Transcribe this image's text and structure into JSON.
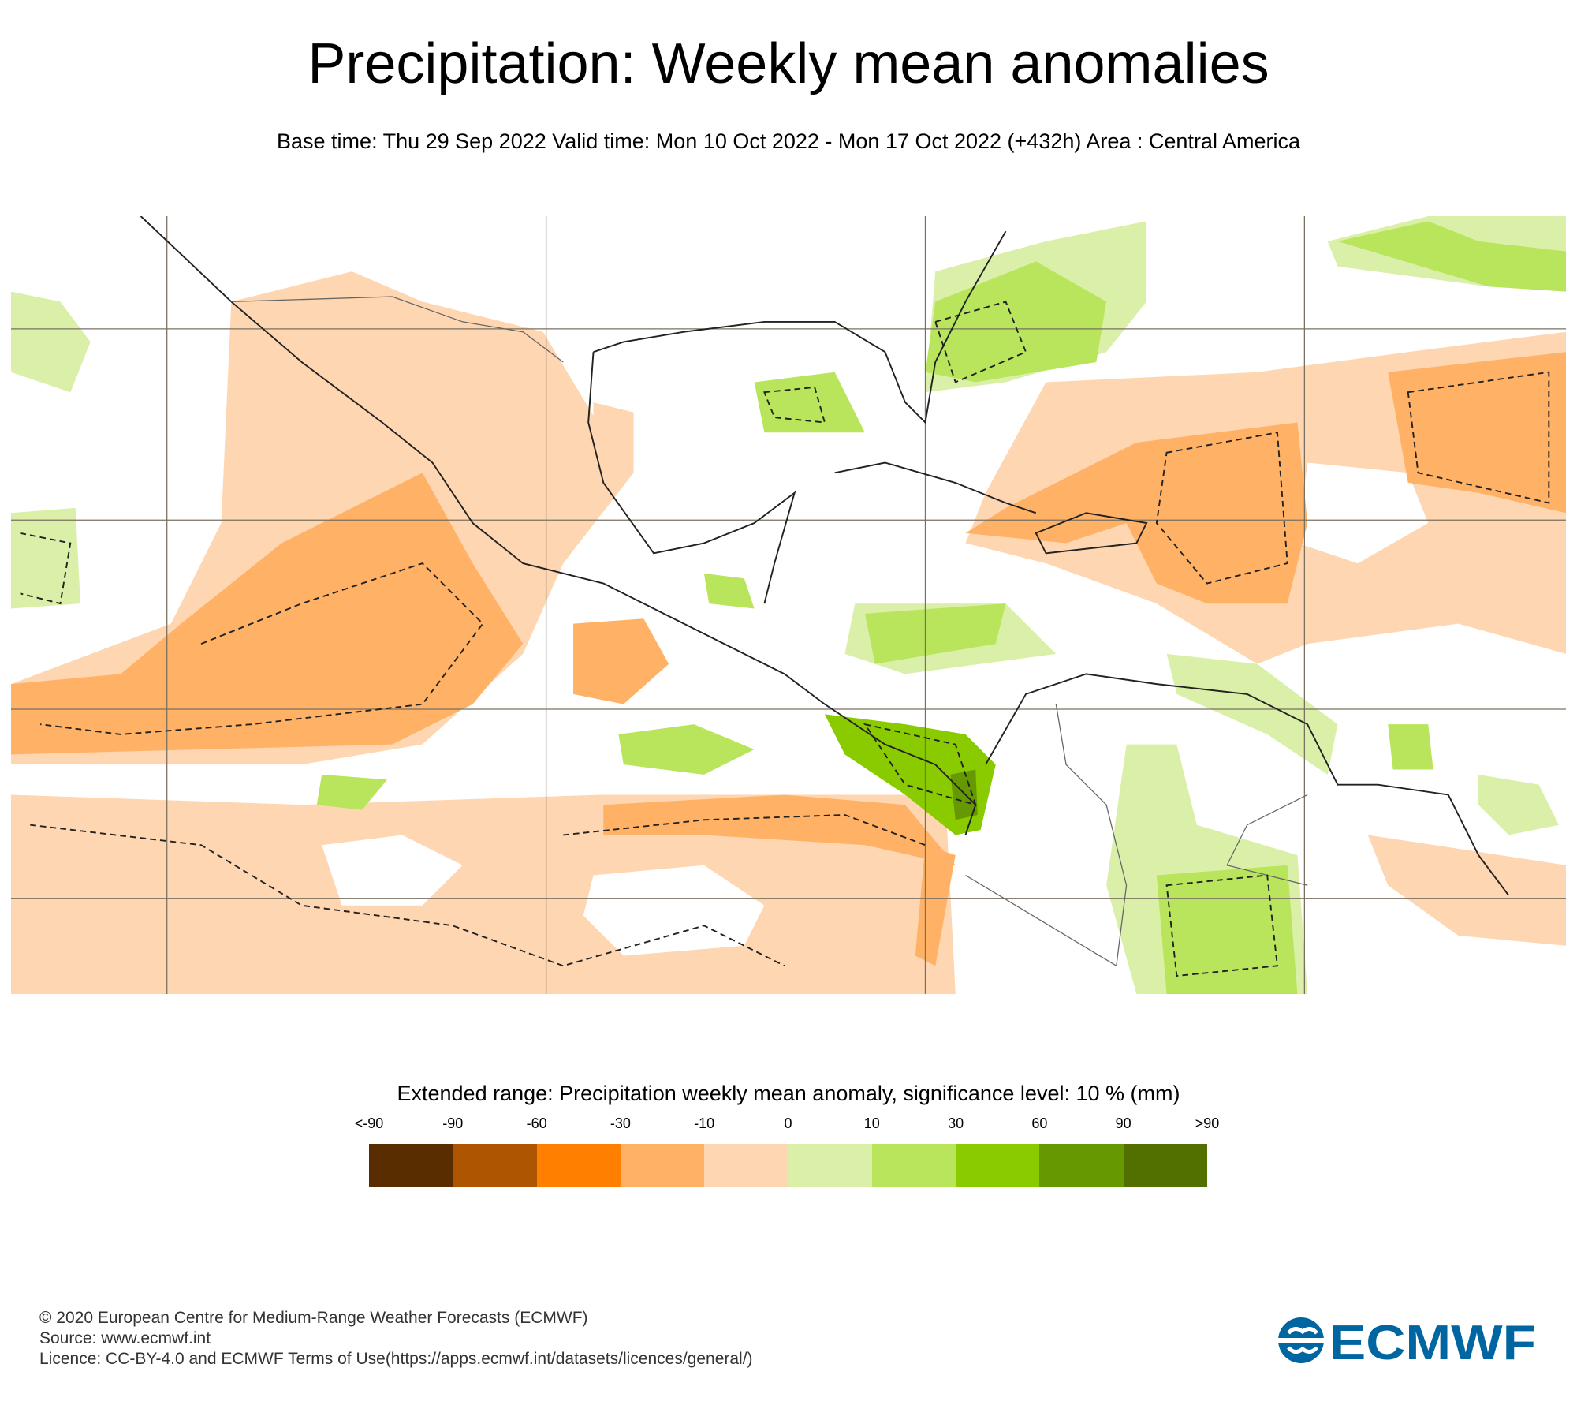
{
  "title": "Precipitation: Weekly mean anomalies",
  "subtitle": "Base time: Thu 29 Sep 2022 Valid time: Mon 10 Oct 2022 - Mon 17 Oct 2022 (+432h) Area : Central America",
  "legend": {
    "title": "Extended range: Precipitation weekly mean anomaly, significance level: 10 % (mm)",
    "labels": [
      "<-90",
      "-90",
      "-60",
      "-30",
      "-10",
      "0",
      "10",
      "30",
      "60",
      "90",
      ">90"
    ],
    "colors": [
      "#5a2d00",
      "#ad5500",
      "#ff8000",
      "#ffb266",
      "#fed6b1",
      "#daf0a9",
      "#b8e55c",
      "#8acb00",
      "#669900",
      "#517000"
    ]
  },
  "footer": {
    "line1": "© 2020 European Centre for Medium-Range Weather Forecasts (ECMWF)",
    "line2": "Source: www.ecmwf.int",
    "line3": "Licence: CC-BY-4.0 and ECMWF Terms of Use(https://apps.ecmwf.int/datasets/licences/general/)"
  },
  "logo": {
    "text": "ECMWF",
    "color": "#0066a1"
  }
}
